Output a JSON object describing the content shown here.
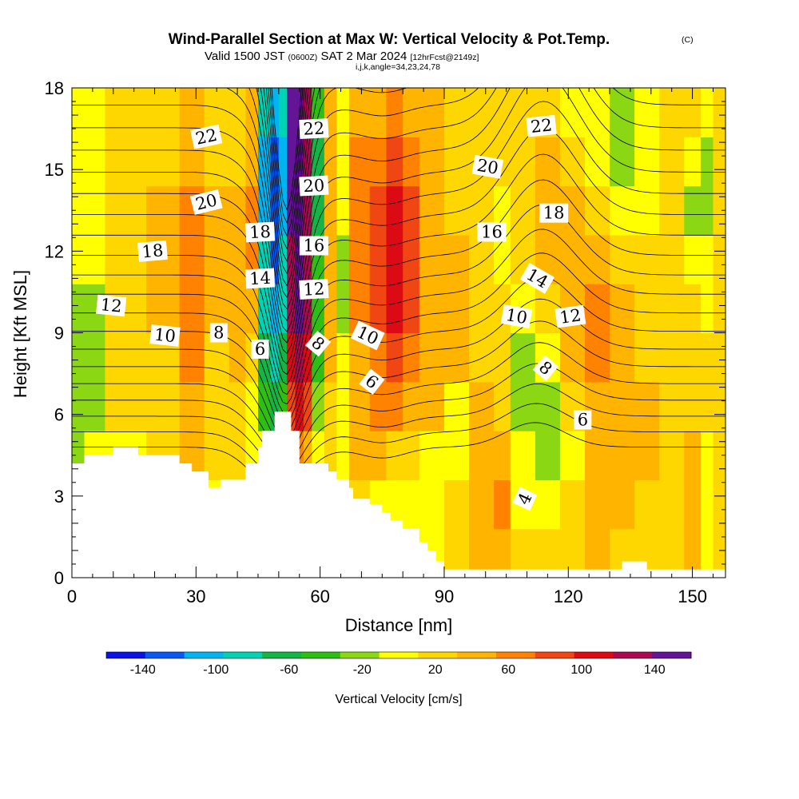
{
  "header": {
    "title": "Wind-Parallel Section at Max W: Vertical Velocity & Pot.Temp.",
    "copyright": "(C)",
    "valid_prefix": "Valid 1500 JST",
    "valid_utc": "(0600Z)",
    "valid_date": "SAT 2 Mar 2024",
    "forecast_info": "[12hrFcst@2149z]",
    "grid_info": "i,j,k,angle=34,23,24,78"
  },
  "chart_data": {
    "type": "heatmap",
    "xlabel": "Distance [nm]",
    "ylabel": "Height [Kft MSL]",
    "xlim": [
      0,
      158
    ],
    "ylim": [
      0,
      18
    ],
    "xticks": [
      0,
      30,
      60,
      90,
      120,
      150
    ],
    "yticks": [
      0,
      3,
      6,
      9,
      12,
      15,
      18
    ],
    "colorbar": {
      "title": "Vertical Velocity [cm/s]",
      "min": -160,
      "max": 160,
      "step": 20,
      "tick_values": [
        -140,
        -100,
        -60,
        -20,
        20,
        60,
        100,
        140
      ],
      "tick_labels": [
        "-140",
        "-100",
        "-60",
        "-20",
        "20",
        "60",
        "100",
        "140"
      ],
      "colors": [
        "#0a12e6",
        "#0a58f2",
        "#00b4f0",
        "#00d2b4",
        "#14b446",
        "#2ebe14",
        "#8cd714",
        "#ffff00",
        "#ffd700",
        "#ffb400",
        "#ff8200",
        "#f04614",
        "#dc0a14",
        "#aa0a50",
        "#641496"
      ]
    },
    "terrain": [
      {
        "x": 0,
        "h": 4.2
      },
      {
        "x": 3,
        "h": 4.5
      },
      {
        "x": 10,
        "h": 4.8
      },
      {
        "x": 16,
        "h": 4.5
      },
      {
        "x": 26,
        "h": 4.2
      },
      {
        "x": 29,
        "h": 3.9
      },
      {
        "x": 33,
        "h": 3.3
      },
      {
        "x": 36,
        "h": 3.6
      },
      {
        "x": 42,
        "h": 4.2
      },
      {
        "x": 45,
        "h": 4.8
      },
      {
        "x": 46,
        "h": 5.4
      },
      {
        "x": 49,
        "h": 6.1
      },
      {
        "x": 53,
        "h": 5.4
      },
      {
        "x": 55,
        "h": 4.2
      },
      {
        "x": 62,
        "h": 3.9
      },
      {
        "x": 64,
        "h": 3.6
      },
      {
        "x": 67,
        "h": 3.3
      },
      {
        "x": 68,
        "h": 2.9
      },
      {
        "x": 72,
        "h": 2.7
      },
      {
        "x": 75,
        "h": 2.4
      },
      {
        "x": 77,
        "h": 2.1
      },
      {
        "x": 80,
        "h": 1.8
      },
      {
        "x": 84,
        "h": 1.3
      },
      {
        "x": 86,
        "h": 1.0
      },
      {
        "x": 88,
        "h": 0.6
      },
      {
        "x": 90,
        "h": 0.3
      },
      {
        "x": 132,
        "h": 0.3
      },
      {
        "x": 133,
        "h": 0.6
      },
      {
        "x": 139,
        "h": 0.3
      },
      {
        "x": 141,
        "h": 0.3
      },
      {
        "x": 158,
        "h": 0.3
      }
    ],
    "contour_labels": [
      {
        "text": "22",
        "x": 32.5,
        "y": 16.2,
        "rot": -12
      },
      {
        "text": "22",
        "x": 58.5,
        "y": 16.5,
        "rot": -3
      },
      {
        "text": "22",
        "x": 113.5,
        "y": 16.6,
        "rot": -6
      },
      {
        "text": "20",
        "x": 32.5,
        "y": 13.8,
        "rot": -14
      },
      {
        "text": "20",
        "x": 58.5,
        "y": 14.4,
        "rot": -3
      },
      {
        "text": "20",
        "x": 100.5,
        "y": 15.1,
        "rot": 10
      },
      {
        "text": "18",
        "x": 19.5,
        "y": 12.0,
        "rot": -5
      },
      {
        "text": "18",
        "x": 45.5,
        "y": 12.7,
        "rot": -3
      },
      {
        "text": "18",
        "x": 116.5,
        "y": 13.4,
        "rot": 0
      },
      {
        "text": "16",
        "x": 58.5,
        "y": 12.2,
        "rot": 0
      },
      {
        "text": "16",
        "x": 101.5,
        "y": 12.7,
        "rot": 0
      },
      {
        "text": "14",
        "x": 45.5,
        "y": 11.0,
        "rot": -3
      },
      {
        "text": "14",
        "x": 112.5,
        "y": 11.0,
        "rot": 30
      },
      {
        "text": "12",
        "x": 9.5,
        "y": 10.0,
        "rot": 6
      },
      {
        "text": "12",
        "x": 58.5,
        "y": 10.6,
        "rot": -3
      },
      {
        "text": "12",
        "x": 120.5,
        "y": 9.6,
        "rot": -8
      },
      {
        "text": "10",
        "x": 22.5,
        "y": 8.9,
        "rot": 6
      },
      {
        "text": "10",
        "x": 71.5,
        "y": 8.9,
        "rot": 25
      },
      {
        "text": "10",
        "x": 107.5,
        "y": 9.6,
        "rot": 10
      },
      {
        "text": "8",
        "x": 35.5,
        "y": 9.0,
        "rot": 0
      },
      {
        "text": "8",
        "x": 59.5,
        "y": 8.6,
        "rot": 40
      },
      {
        "text": "8",
        "x": 114.5,
        "y": 7.7,
        "rot": 40
      },
      {
        "text": "6",
        "x": 45.5,
        "y": 8.4,
        "rot": 0
      },
      {
        "text": "6",
        "x": 72.5,
        "y": 7.2,
        "rot": 38
      },
      {
        "text": "6",
        "x": 123.5,
        "y": 5.8,
        "rot": 0
      },
      {
        "text": "4",
        "x": 109.5,
        "y": 2.9,
        "rot": -65
      }
    ],
    "field_bands": [
      {
        "x0": 0,
        "x1": 3,
        "values": [
          -20,
          -20,
          -40,
          -40,
          -40,
          -40,
          -20,
          -20,
          -20,
          -20
        ]
      },
      {
        "x0": 3,
        "x1": 8,
        "values": [
          -20,
          -20,
          -20,
          -40,
          -40,
          -40,
          -20,
          -20,
          -20,
          -20
        ]
      },
      {
        "x0": 8,
        "x1": 18,
        "values": [
          -20,
          -20,
          -20,
          0,
          0,
          0,
          0,
          0,
          0,
          0
        ]
      },
      {
        "x0": 18,
        "x1": 26,
        "values": [
          0,
          0,
          0,
          0,
          0,
          20,
          20,
          20,
          0,
          0
        ]
      },
      {
        "x0": 26,
        "x1": 32,
        "values": [
          0,
          0,
          20,
          20,
          40,
          40,
          40,
          40,
          20,
          20
        ]
      },
      {
        "x0": 32,
        "x1": 38,
        "values": [
          -20,
          -20,
          0,
          0,
          0,
          20,
          20,
          20,
          0,
          0
        ]
      },
      {
        "x0": 38,
        "x1": 42,
        "values": [
          0,
          0,
          0,
          0,
          20,
          20,
          20,
          20,
          0,
          0
        ]
      },
      {
        "x0": 42,
        "x1": 45,
        "values": [
          -20,
          -20,
          -20,
          -20,
          0,
          20,
          40,
          40,
          20,
          20
        ]
      },
      {
        "x0": 45,
        "x1": 48,
        "values": [
          -20,
          -20,
          -20,
          -60,
          -80,
          -100,
          -100,
          -120,
          -120,
          -100
        ]
      },
      {
        "x0": 48,
        "x1": 50,
        "values": [
          -40,
          -40,
          -40,
          -80,
          -100,
          -120,
          -140,
          -140,
          -140,
          -120
        ]
      },
      {
        "x0": 50,
        "x1": 52,
        "values": [
          -20,
          -20,
          -20,
          -60,
          -80,
          -100,
          -100,
          -120,
          -120,
          -100
        ]
      },
      {
        "x0": 52,
        "x1": 54,
        "values": [
          0,
          0,
          20,
          60,
          80,
          100,
          100,
          120,
          120,
          120
        ]
      },
      {
        "x0": 54,
        "x1": 56,
        "values": [
          20,
          20,
          40,
          80,
          100,
          120,
          140,
          140,
          140,
          140
        ]
      },
      {
        "x0": 56,
        "x1": 58,
        "values": [
          0,
          0,
          20,
          60,
          80,
          100,
          100,
          100,
          100,
          100
        ]
      },
      {
        "x0": 58,
        "x1": 61,
        "values": [
          -20,
          -20,
          -20,
          -40,
          -60,
          -60,
          -60,
          -80,
          -80,
          -60
        ]
      },
      {
        "x0": 61,
        "x1": 64,
        "values": [
          0,
          0,
          0,
          0,
          20,
          20,
          20,
          20,
          20,
          20
        ]
      },
      {
        "x0": 64,
        "x1": 67,
        "values": [
          -20,
          -20,
          -20,
          -20,
          -20,
          -40,
          -40,
          -20,
          -20,
          -20
        ]
      },
      {
        "x0": 67,
        "x1": 72,
        "values": [
          0,
          0,
          20,
          20,
          20,
          40,
          40,
          40,
          40,
          20
        ]
      },
      {
        "x0": 72,
        "x1": 76,
        "values": [
          -20,
          -20,
          20,
          40,
          40,
          60,
          60,
          60,
          40,
          20
        ]
      },
      {
        "x0": 76,
        "x1": 80,
        "values": [
          -20,
          -20,
          0,
          40,
          60,
          80,
          80,
          80,
          60,
          40
        ]
      },
      {
        "x0": 80,
        "x1": 84,
        "values": [
          -20,
          -20,
          0,
          20,
          40,
          60,
          60,
          60,
          40,
          20
        ]
      },
      {
        "x0": 84,
        "x1": 90,
        "values": [
          -20,
          -20,
          -20,
          20,
          20,
          20,
          20,
          20,
          20,
          20
        ]
      },
      {
        "x0": 90,
        "x1": 96,
        "values": [
          0,
          0,
          -20,
          -20,
          20,
          20,
          20,
          0,
          0,
          0
        ]
      },
      {
        "x0": 96,
        "x1": 102,
        "values": [
          20,
          20,
          20,
          20,
          0,
          0,
          0,
          0,
          0,
          0
        ]
      },
      {
        "x0": 102,
        "x1": 106,
        "values": [
          20,
          40,
          20,
          0,
          0,
          0,
          -20,
          -20,
          0,
          0
        ]
      },
      {
        "x0": 106,
        "x1": 112,
        "values": [
          0,
          -20,
          -20,
          -40,
          -40,
          -20,
          0,
          0,
          0,
          0
        ]
      },
      {
        "x0": 112,
        "x1": 118,
        "values": [
          0,
          -20,
          -40,
          -40,
          -20,
          0,
          20,
          20,
          20,
          0
        ]
      },
      {
        "x0": 118,
        "x1": 124,
        "values": [
          0,
          0,
          -20,
          0,
          20,
          20,
          20,
          20,
          0,
          -20
        ]
      },
      {
        "x0": 124,
        "x1": 130,
        "values": [
          20,
          20,
          20,
          20,
          40,
          40,
          20,
          0,
          -20,
          -20
        ]
      },
      {
        "x0": 130,
        "x1": 136,
        "values": [
          0,
          20,
          20,
          20,
          20,
          20,
          0,
          -20,
          -40,
          -40
        ]
      },
      {
        "x0": 136,
        "x1": 142,
        "values": [
          0,
          0,
          20,
          20,
          0,
          0,
          0,
          -20,
          -20,
          -20
        ]
      },
      {
        "x0": 142,
        "x1": 148,
        "values": [
          0,
          0,
          0,
          0,
          0,
          0,
          0,
          0,
          0,
          0
        ]
      },
      {
        "x0": 148,
        "x1": 152,
        "values": [
          20,
          20,
          20,
          0,
          0,
          0,
          -20,
          -40,
          -20,
          0
        ]
      },
      {
        "x0": 152,
        "x1": 155,
        "values": [
          -20,
          -20,
          -20,
          0,
          0,
          -20,
          -20,
          -40,
          -40,
          -20
        ]
      },
      {
        "x0": 155,
        "x1": 158,
        "values": [
          0,
          0,
          0,
          0,
          0,
          0,
          0,
          0,
          0,
          0
        ]
      }
    ]
  }
}
